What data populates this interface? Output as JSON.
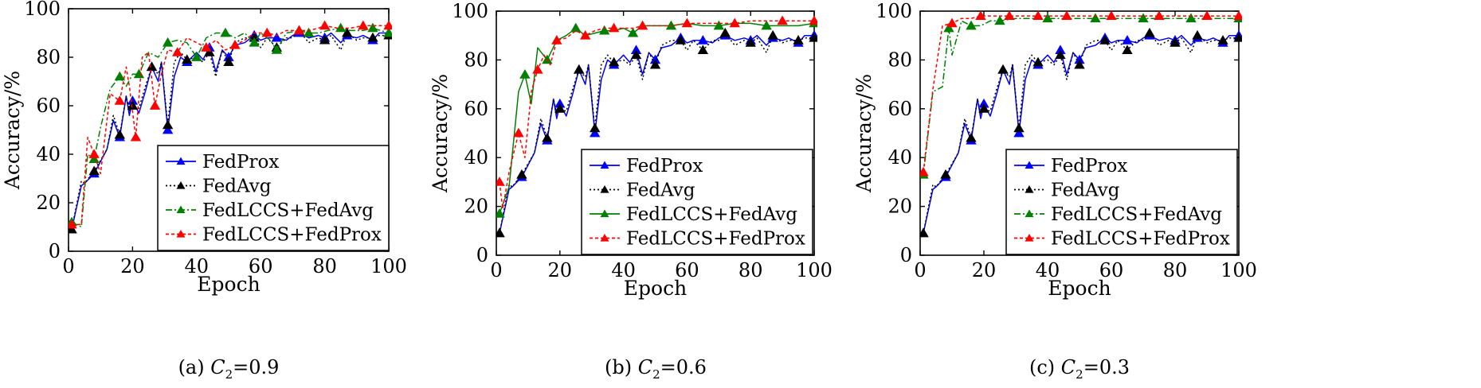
{
  "chart_data": [
    {
      "type": "line",
      "caption": "(a) C2=0.9",
      "caption_prefix": "(a) ",
      "caption_var": "C",
      "caption_sub": "2",
      "caption_val": "=0.9",
      "xlabel": "Epoch",
      "ylabel": "Accuracy/%",
      "xlim": [
        0,
        100
      ],
      "ylim": [
        0,
        100
      ],
      "xticks": [
        "0",
        "20",
        "40",
        "60",
        "80",
        "100"
      ],
      "yticks": [
        "0",
        "20",
        "40",
        "60",
        "80",
        "100"
      ],
      "legend_position": "bottom-right",
      "series": [
        {
          "name": "FedProx",
          "color": "#0000ff",
          "style": "solid",
          "marker": "triangle",
          "x": [
            1,
            4,
            5,
            8,
            12,
            14,
            16,
            18,
            19,
            20,
            22,
            24,
            26,
            28,
            29,
            31,
            33,
            35,
            37,
            40,
            42,
            44,
            46,
            48,
            50,
            52,
            55,
            58,
            60,
            62,
            65,
            68,
            70,
            72,
            75,
            78,
            80,
            82,
            85,
            87,
            90,
            92,
            95,
            97,
            100
          ],
          "y": [
            9,
            27,
            28,
            32,
            42,
            54,
            47,
            64,
            56,
            62,
            57,
            66,
            76,
            70,
            78,
            50,
            72,
            80,
            78,
            82,
            79,
            84,
            74,
            83,
            80,
            85,
            86,
            89,
            87,
            88,
            88,
            87,
            89,
            90,
            88,
            89,
            88,
            90,
            86,
            89,
            88,
            89,
            87,
            90,
            90
          ]
        },
        {
          "name": "FedAvg",
          "color": "#000000",
          "style": "dotted",
          "marker": "triangle",
          "x": [
            1,
            4,
            5,
            8,
            12,
            14,
            16,
            18,
            19,
            20,
            22,
            24,
            26,
            28,
            29,
            31,
            33,
            35,
            37,
            40,
            42,
            44,
            46,
            48,
            50,
            52,
            55,
            58,
            60,
            62,
            65,
            68,
            70,
            72,
            75,
            78,
            80,
            82,
            85,
            87,
            90,
            92,
            95,
            97,
            100
          ],
          "y": [
            9,
            29,
            28,
            33,
            42,
            56,
            48,
            64,
            58,
            60,
            59,
            68,
            76,
            73,
            78,
            52,
            78,
            82,
            79,
            80,
            78,
            82,
            72,
            83,
            78,
            86,
            88,
            88,
            84,
            88,
            84,
            88,
            88,
            91,
            86,
            88,
            87,
            89,
            83,
            90,
            87,
            88,
            88,
            89,
            89
          ]
        },
        {
          "name": "FedLCCS+FedAvg",
          "color": "#008000",
          "style": "dashdot",
          "marker": "triangle",
          "x": [
            1,
            4,
            6,
            8,
            10,
            13,
            16,
            18,
            20,
            22,
            25,
            28,
            31,
            34,
            37,
            40,
            43,
            46,
            49,
            52,
            55,
            58,
            60,
            63,
            65,
            68,
            72,
            75,
            78,
            81,
            85,
            88,
            92,
            95,
            100
          ],
          "y": [
            12,
            10,
            40,
            38,
            51,
            67,
            72,
            68,
            73,
            73,
            82,
            80,
            86,
            87,
            86,
            80,
            88,
            90,
            90,
            88,
            90,
            86,
            90,
            87,
            83,
            90,
            91,
            90,
            90,
            91,
            92,
            91,
            91,
            92,
            90
          ]
        },
        {
          "name": "FedLCCS+FedProx",
          "color": "#ff0000",
          "style": "dashed",
          "marker": "triangle",
          "x": [
            1,
            4,
            6,
            8,
            10,
            13,
            16,
            18,
            19,
            21,
            23,
            25,
            27,
            29,
            31,
            34,
            37,
            40,
            43,
            46,
            49,
            52,
            55,
            58,
            62,
            65,
            68,
            72,
            75,
            78,
            80,
            84,
            88,
            92,
            96,
            100
          ],
          "y": [
            11,
            11,
            47,
            40,
            32,
            65,
            62,
            76,
            68,
            47,
            80,
            82,
            60,
            73,
            83,
            82,
            88,
            86,
            84,
            87,
            83,
            85,
            87,
            90,
            90,
            89,
            91,
            91,
            91,
            92,
            93,
            92,
            92,
            93,
            93,
            93
          ]
        }
      ]
    },
    {
      "type": "line",
      "caption": "(b) C2=0.6",
      "caption_prefix": "(b) ",
      "caption_var": "C",
      "caption_sub": "2",
      "caption_val": "=0.6",
      "xlabel": "Epoch",
      "ylabel": "Accuracy/%",
      "xlim": [
        0,
        100
      ],
      "ylim": [
        0,
        100
      ],
      "xticks": [
        "0",
        "20",
        "40",
        "60",
        "80",
        "100"
      ],
      "yticks": [
        "0",
        "20",
        "40",
        "60",
        "80",
        "100"
      ],
      "legend_position": "bottom-right",
      "series": [
        {
          "name": "FedProx",
          "color": "#0000ff",
          "style": "solid",
          "marker": "triangle",
          "x": [
            1,
            4,
            5,
            8,
            12,
            14,
            16,
            18,
            19,
            20,
            22,
            24,
            26,
            28,
            29,
            31,
            33,
            35,
            37,
            40,
            42,
            44,
            46,
            48,
            50,
            52,
            55,
            58,
            60,
            62,
            65,
            68,
            70,
            72,
            75,
            78,
            80,
            82,
            85,
            87,
            90,
            92,
            95,
            97,
            100
          ],
          "y": [
            9,
            27,
            28,
            32,
            42,
            54,
            47,
            64,
            56,
            62,
            57,
            66,
            76,
            70,
            78,
            50,
            72,
            80,
            78,
            82,
            79,
            84,
            74,
            83,
            80,
            85,
            86,
            89,
            87,
            88,
            88,
            87,
            89,
            90,
            88,
            89,
            88,
            90,
            86,
            89,
            88,
            89,
            87,
            90,
            90
          ]
        },
        {
          "name": "FedAvg",
          "color": "#000000",
          "style": "dotted",
          "marker": "triangle",
          "x": [
            1,
            4,
            5,
            8,
            12,
            14,
            16,
            18,
            19,
            20,
            22,
            24,
            26,
            28,
            29,
            31,
            33,
            35,
            37,
            40,
            42,
            44,
            46,
            48,
            50,
            52,
            55,
            58,
            60,
            62,
            65,
            68,
            70,
            72,
            75,
            78,
            80,
            82,
            85,
            87,
            90,
            92,
            95,
            97,
            100
          ],
          "y": [
            9,
            29,
            28,
            33,
            42,
            56,
            48,
            64,
            58,
            60,
            59,
            68,
            76,
            73,
            78,
            52,
            78,
            82,
            79,
            80,
            78,
            82,
            72,
            83,
            78,
            86,
            88,
            88,
            84,
            88,
            84,
            88,
            88,
            91,
            86,
            88,
            87,
            89,
            83,
            90,
            87,
            88,
            88,
            89,
            89
          ]
        },
        {
          "name": "FedLCCS+FedAvg",
          "color": "#008000",
          "style": "solid",
          "marker": "triangle",
          "x": [
            1,
            4,
            7,
            9,
            11,
            13,
            16,
            19,
            22,
            25,
            28,
            31,
            34,
            37,
            40,
            43,
            46,
            50,
            55,
            60,
            65,
            70,
            75,
            80,
            85,
            90,
            95,
            100
          ],
          "y": [
            17,
            28,
            67,
            74,
            62,
            85,
            80,
            88,
            90,
            93,
            90,
            91,
            92,
            92,
            93,
            91,
            94,
            94,
            94,
            95,
            94,
            94,
            95,
            95,
            94,
            94,
            94,
            95
          ]
        },
        {
          "name": "FedLCCS+FedProx",
          "color": "#ff0000",
          "style": "dashed",
          "marker": "triangle",
          "x": [
            1,
            2,
            4,
            7,
            9,
            11,
            13,
            15,
            17,
            19,
            22,
            25,
            28,
            31,
            34,
            37,
            40,
            43,
            46,
            50,
            55,
            60,
            65,
            70,
            75,
            80,
            85,
            90,
            95,
            100
          ],
          "y": [
            30,
            19,
            34,
            50,
            40,
            67,
            76,
            82,
            78,
            88,
            89,
            92,
            90,
            92,
            93,
            93,
            93,
            93,
            94,
            94,
            94,
            95,
            95,
            95,
            95,
            96,
            96,
            96,
            96,
            96
          ]
        }
      ]
    },
    {
      "type": "line",
      "caption": "(c) C2=0.3",
      "caption_prefix": "(c) ",
      "caption_var": "C",
      "caption_sub": "2",
      "caption_val": "=0.3",
      "xlabel": "Epoch",
      "ylabel": "Accuracy/%",
      "xlim": [
        0,
        100
      ],
      "ylim": [
        0,
        100
      ],
      "xticks": [
        "0",
        "20",
        "40",
        "60",
        "80",
        "100"
      ],
      "yticks": [
        "0",
        "20",
        "40",
        "60",
        "80",
        "100"
      ],
      "legend_position": "bottom-right",
      "series": [
        {
          "name": "FedProx",
          "color": "#0000ff",
          "style": "solid",
          "marker": "triangle",
          "x": [
            1,
            4,
            5,
            8,
            12,
            14,
            16,
            18,
            19,
            20,
            22,
            24,
            26,
            28,
            29,
            31,
            33,
            35,
            37,
            40,
            42,
            44,
            46,
            48,
            50,
            52,
            55,
            58,
            60,
            62,
            65,
            68,
            70,
            72,
            75,
            78,
            80,
            82,
            85,
            87,
            90,
            92,
            95,
            97,
            100
          ],
          "y": [
            9,
            27,
            28,
            32,
            42,
            54,
            47,
            64,
            56,
            62,
            57,
            66,
            76,
            70,
            78,
            50,
            72,
            80,
            78,
            82,
            79,
            84,
            74,
            83,
            80,
            85,
            86,
            89,
            87,
            88,
            88,
            87,
            89,
            90,
            88,
            89,
            88,
            90,
            86,
            89,
            88,
            89,
            87,
            90,
            90
          ]
        },
        {
          "name": "FedAvg",
          "color": "#000000",
          "style": "dotted",
          "marker": "triangle",
          "x": [
            1,
            4,
            5,
            8,
            12,
            14,
            16,
            18,
            19,
            20,
            22,
            24,
            26,
            28,
            29,
            31,
            33,
            35,
            37,
            40,
            42,
            44,
            46,
            48,
            50,
            52,
            55,
            58,
            60,
            62,
            65,
            68,
            70,
            72,
            75,
            78,
            80,
            82,
            85,
            87,
            90,
            92,
            95,
            97,
            100
          ],
          "y": [
            9,
            29,
            28,
            33,
            42,
            56,
            48,
            64,
            58,
            60,
            59,
            68,
            76,
            73,
            78,
            52,
            78,
            82,
            79,
            80,
            78,
            82,
            72,
            83,
            78,
            86,
            88,
            88,
            84,
            88,
            84,
            88,
            88,
            91,
            86,
            88,
            87,
            89,
            83,
            90,
            87,
            88,
            88,
            89,
            89
          ]
        },
        {
          "name": "FedLCCS+FedAvg",
          "color": "#008000",
          "style": "dashdot",
          "marker": "triangle",
          "x": [
            1,
            4,
            7,
            9,
            10,
            13,
            16,
            19,
            22,
            25,
            30,
            35,
            40,
            45,
            50,
            55,
            60,
            65,
            70,
            75,
            80,
            85,
            90,
            95,
            100
          ],
          "y": [
            33,
            67,
            69,
            93,
            82,
            96,
            94,
            94,
            96,
            96,
            97,
            97,
            97,
            97,
            97,
            97,
            97,
            97,
            97,
            97,
            97,
            97,
            97,
            97,
            97
          ]
        },
        {
          "name": "FedLCCS+FedProx",
          "color": "#ff0000",
          "style": "dashed",
          "marker": "triangle",
          "x": [
            1,
            4,
            7,
            10,
            13,
            16,
            19,
            22,
            25,
            28,
            31,
            34,
            37,
            40,
            43,
            46,
            50,
            55,
            60,
            65,
            70,
            75,
            80,
            85,
            90,
            95,
            100
          ],
          "y": [
            34,
            68,
            94,
            95,
            97,
            97,
            98,
            98,
            98,
            98,
            98,
            98,
            98,
            98,
            98,
            98,
            98,
            98,
            98,
            98,
            98,
            98,
            98,
            98,
            98,
            98,
            98
          ]
        }
      ]
    }
  ]
}
